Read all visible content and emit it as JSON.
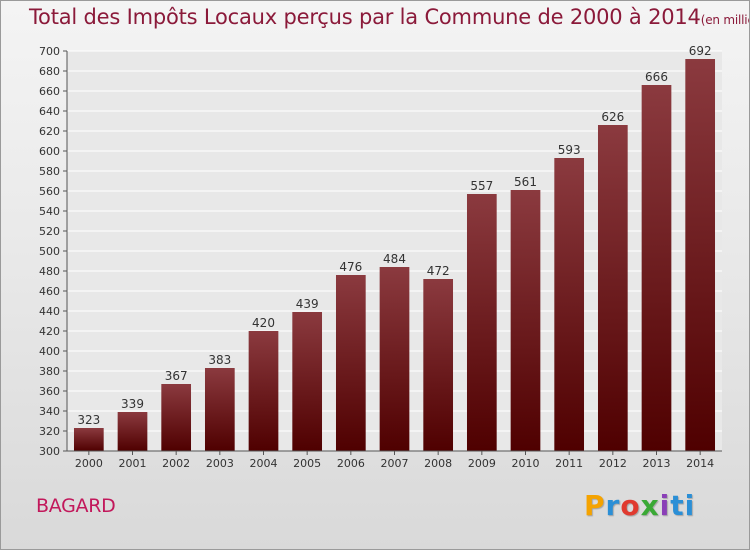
{
  "title": "Total des Impôts Locaux perçus par la Commune de 2000 à 2014",
  "title_unit": "(en milliers d'€)",
  "commune": "BAGARD",
  "logo": [
    "P",
    "r",
    "o",
    "x",
    "i",
    "ti"
  ],
  "colors": {
    "bar_top": "#8b3a3f",
    "bar_bottom": "#4f0000",
    "title": "#8b1a3a",
    "commune": "#c2185b",
    "grid": "#ffffff"
  },
  "chart_data": {
    "type": "bar",
    "categories": [
      "2000",
      "2001",
      "2002",
      "2003",
      "2004",
      "2005",
      "2006",
      "2007",
      "2008",
      "2009",
      "2010",
      "2011",
      "2012",
      "2013",
      "2014"
    ],
    "values": [
      323,
      339,
      367,
      383,
      420,
      439,
      476,
      484,
      472,
      557,
      561,
      593,
      626,
      666,
      692
    ],
    "ylim": [
      300,
      700
    ],
    "ytick_step": 20,
    "grid": true,
    "data_labels": true
  }
}
